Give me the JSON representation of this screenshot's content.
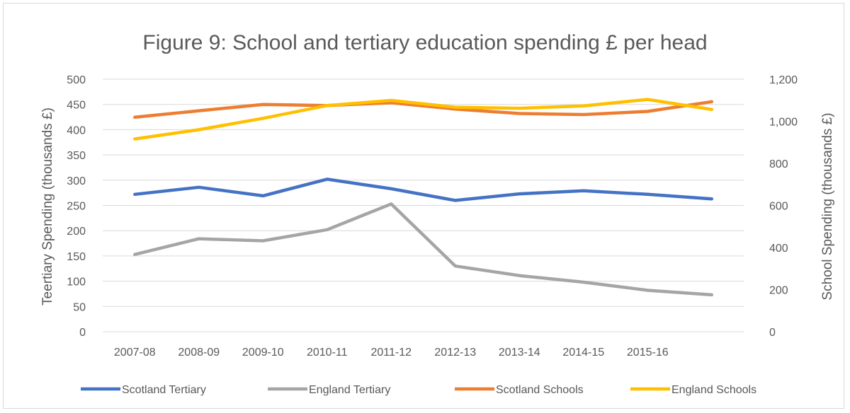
{
  "chart_data": {
    "type": "line",
    "title": "Figure 9: School and tertiary education spending £ per head",
    "ylabel_left": "Teertiary Spending (thousands £)",
    "ylabel_right": "School Spending (thousands £)",
    "categories": [
      "2007-08",
      "2008-09",
      "2009-10",
      "2010-11",
      "2011-12",
      "2012-13",
      "2013-14",
      "2014-15",
      "2015-16",
      ""
    ],
    "ylim_left": [
      0,
      500
    ],
    "yticks_left": [
      0,
      50,
      100,
      150,
      200,
      250,
      300,
      350,
      400,
      450,
      500
    ],
    "yticks_left_labels": [
      "0",
      "50",
      "100",
      "150",
      "200",
      "250",
      "300",
      "350",
      "400",
      "450",
      "500"
    ],
    "ylim_right": [
      0,
      1200
    ],
    "yticks_right": [
      0,
      200,
      400,
      600,
      800,
      1000,
      1200
    ],
    "yticks_right_labels": [
      "0",
      "200",
      "400",
      "600",
      "800",
      "1,000",
      "1,200"
    ],
    "grid": true,
    "legend_position": "bottom",
    "series": [
      {
        "name": "Scotland Tertiary",
        "axis": "left",
        "color": "#4472C4",
        "values": [
          272,
          286,
          269,
          302,
          283,
          260,
          273,
          279,
          272,
          263
        ]
      },
      {
        "name": "England Tertiary",
        "axis": "left",
        "color": "#A5A5A5",
        "values": [
          153,
          184,
          180,
          202,
          253,
          130,
          111,
          98,
          82,
          73
        ]
      },
      {
        "name": "Scotland Schools",
        "axis": "right",
        "color": "#ED7D31",
        "values": [
          1019,
          1050,
          1080,
          1075,
          1088,
          1058,
          1037,
          1032,
          1047,
          1093
        ]
      },
      {
        "name": "England Schools",
        "axis": "right",
        "color": "#FFC000",
        "values": [
          916,
          960,
          1014,
          1075,
          1099,
          1067,
          1062,
          1073,
          1104,
          1056
        ]
      }
    ]
  }
}
